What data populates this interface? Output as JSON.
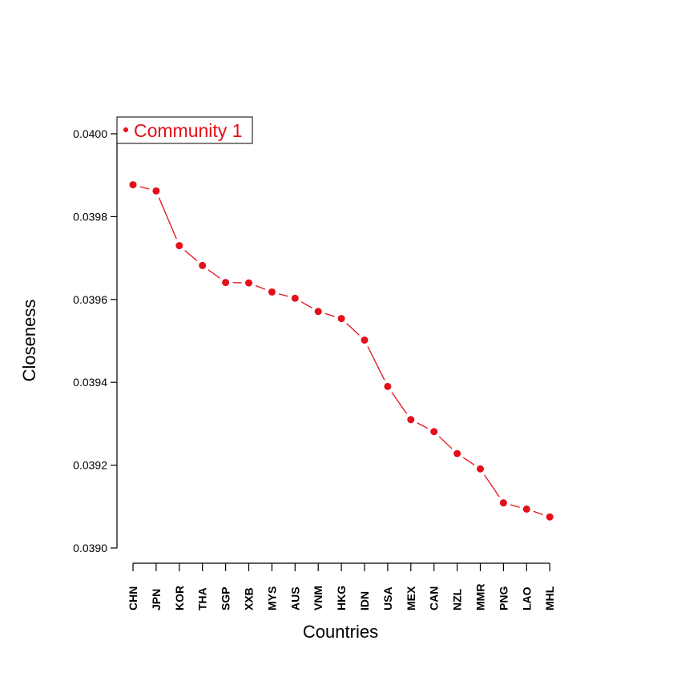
{
  "chart_data": {
    "type": "line",
    "title": "",
    "xlabel": "Countries",
    "ylabel": "Closeness",
    "categories": [
      "CHN",
      "JPN",
      "KOR",
      "THA",
      "SGP",
      "XXB",
      "MYS",
      "AUS",
      "VNM",
      "HKG",
      "IDN",
      "USA",
      "MEX",
      "CAN",
      "NZL",
      "MMR",
      "PNG",
      "LAO",
      "MHL"
    ],
    "series": [
      {
        "name": "Community 1",
        "color": "#e3101a",
        "values": [
          0.039877,
          0.039862,
          0.03973,
          0.039682,
          0.039641,
          0.03964,
          0.039618,
          0.039603,
          0.039571,
          0.039554,
          0.039502,
          0.03939,
          0.03931,
          0.039281,
          0.039228,
          0.039191,
          0.039109,
          0.039094,
          0.039075
        ]
      }
    ],
    "ylim": [
      0.039,
      0.04
    ],
    "yticks": [
      "0.0390",
      "0.0392",
      "0.0394",
      "0.0396",
      "0.0398",
      "0.0400"
    ],
    "grid": false,
    "legend_position": "top-left"
  }
}
